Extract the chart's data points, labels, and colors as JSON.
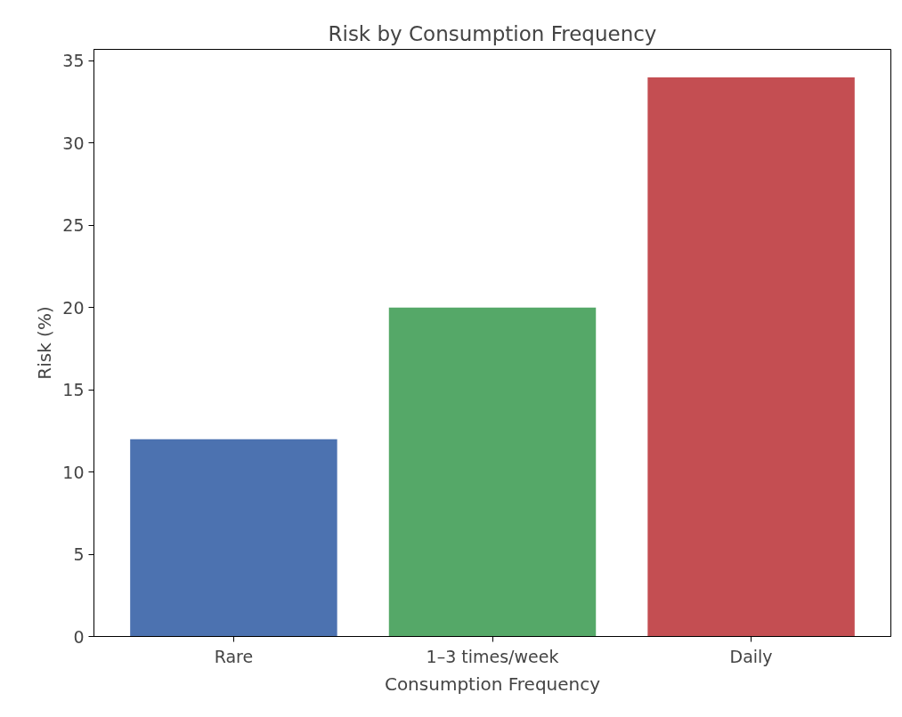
{
  "chart_data": {
    "type": "bar",
    "title": "Risk by Consumption Frequency",
    "xlabel": "Consumption Frequency",
    "ylabel": "Risk (%)",
    "categories": [
      "Rare",
      "1–3 times/week",
      "Daily"
    ],
    "values": [
      12,
      20,
      34
    ],
    "colors": [
      "#4c72b0",
      "#55a868",
      "#c44e52"
    ],
    "ylim": [
      0,
      35.7
    ],
    "yticks": [
      0,
      5,
      10,
      15,
      20,
      25,
      30,
      35
    ],
    "grid": false
  }
}
